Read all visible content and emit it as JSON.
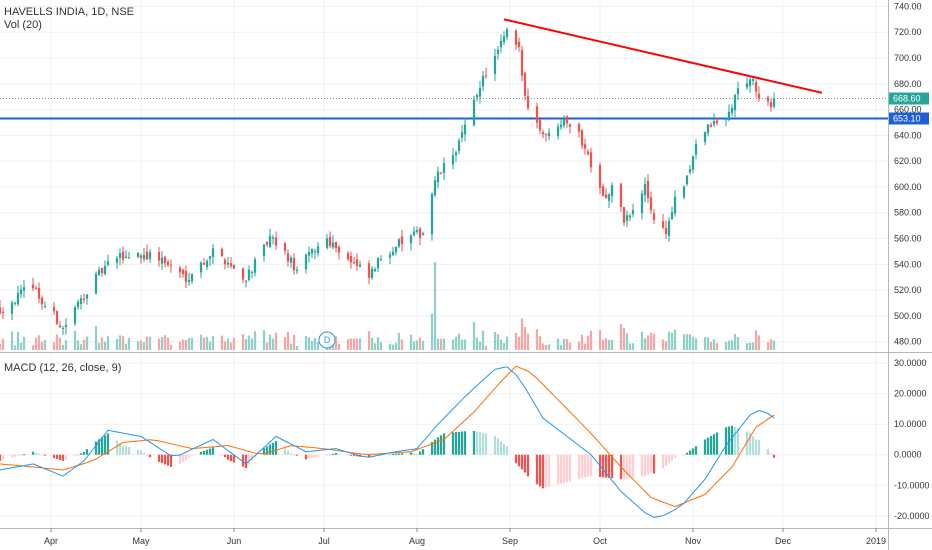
{
  "legend": {
    "symbol": "HAVELLS INDIA, 1D, NSE",
    "volume": "Vol (20)",
    "macd": "MACD (12, 26, close, 9)"
  },
  "colors": {
    "up": "#26a69a",
    "down": "#ef5350",
    "up_vol": "#8fd1c8",
    "down_vol": "#f4a7a5",
    "hist_up_strong": "#26a69a",
    "hist_up_weak": "#b2dfdb",
    "hist_down_strong": "#ef5350",
    "hist_down_weak": "#ffcdd2",
    "macd_line": "#2196f3",
    "signal_line": "#ff6d00",
    "trendline": "#ff0000",
    "support": "#1e5fd6",
    "last_price_tag": "#26a69a",
    "support_tag": "#1e5fd6"
  },
  "events": {
    "dividend_marker": "D",
    "dividend_date": "2018-07-02"
  },
  "chart_data": [
    {
      "type": "candlestick",
      "title": "HAVELLS INDIA, 1D, NSE",
      "x_ticks": [
        "Apr",
        "May",
        "Jun",
        "Jul",
        "Aug",
        "Sep",
        "Oct",
        "Nov",
        "Dec",
        "2019"
      ],
      "y_ticks": [
        480,
        500,
        520,
        540,
        560,
        580,
        600,
        620,
        640,
        660,
        680,
        700,
        720,
        740
      ],
      "ylim": [
        472,
        745
      ],
      "x_range": [
        "2018-03-15",
        "2019-01-05"
      ],
      "last_price": "668.60",
      "support_level": "653.10",
      "support_value": 653.1,
      "trendline": {
        "x": [
          "2018-08-30",
          "2018-12-14"
        ],
        "y": [
          730,
          673
        ]
      },
      "anchors": [
        [
          "2018-03-15",
          505
        ],
        [
          "2018-03-21",
          515
        ],
        [
          "2018-03-26",
          525
        ],
        [
          "2018-03-29",
          510
        ],
        [
          "2018-04-02",
          500
        ],
        [
          "2018-04-05",
          490
        ],
        [
          "2018-04-09",
          505
        ],
        [
          "2018-04-13",
          520
        ],
        [
          "2018-04-18",
          535
        ],
        [
          "2018-04-23",
          545
        ],
        [
          "2018-04-30",
          548
        ],
        [
          "2018-05-07",
          545
        ],
        [
          "2018-05-11",
          538
        ],
        [
          "2018-05-16",
          530
        ],
        [
          "2018-05-21",
          540
        ],
        [
          "2018-05-25",
          550
        ],
        [
          "2018-05-30",
          542
        ],
        [
          "2018-06-04",
          528
        ],
        [
          "2018-06-08",
          540
        ],
        [
          "2018-06-13",
          560
        ],
        [
          "2018-06-18",
          548
        ],
        [
          "2018-06-22",
          535
        ],
        [
          "2018-06-27",
          550
        ],
        [
          "2018-07-02",
          560
        ],
        [
          "2018-07-06",
          552
        ],
        [
          "2018-07-11",
          540
        ],
        [
          "2018-07-16",
          530
        ],
        [
          "2018-07-20",
          545
        ],
        [
          "2018-07-25",
          555
        ],
        [
          "2018-07-31",
          562
        ],
        [
          "2018-08-03",
          565
        ],
        [
          "2018-08-07",
          605
        ],
        [
          "2018-08-13",
          625
        ],
        [
          "2018-08-17",
          645
        ],
        [
          "2018-08-22",
          680
        ],
        [
          "2018-08-27",
          700
        ],
        [
          "2018-08-31",
          720
        ],
        [
          "2018-09-04",
          705
        ],
        [
          "2018-09-06",
          670
        ],
        [
          "2018-09-11",
          645
        ],
        [
          "2018-09-14",
          640
        ],
        [
          "2018-09-19",
          655
        ],
        [
          "2018-09-24",
          640
        ],
        [
          "2018-09-27",
          625
        ],
        [
          "2018-10-03",
          590
        ],
        [
          "2018-10-05",
          600
        ],
        [
          "2018-10-09",
          575
        ],
        [
          "2018-10-12",
          580
        ],
        [
          "2018-10-16",
          600
        ],
        [
          "2018-10-19",
          575
        ],
        [
          "2018-10-23",
          565
        ],
        [
          "2018-10-26",
          590
        ],
        [
          "2018-10-30",
          605
        ],
        [
          "2018-11-02",
          635
        ],
        [
          "2018-11-07",
          648
        ],
        [
          "2018-11-12",
          652
        ],
        [
          "2018-11-16",
          675
        ],
        [
          "2018-11-20",
          685
        ],
        [
          "2018-11-23",
          670
        ],
        [
          "2018-11-27",
          660
        ],
        [
          "2018-11-28",
          665
        ]
      ]
    },
    {
      "type": "bar",
      "title": "Vol (20)",
      "note": "volume bars coloured by candle direction, shown at bottom of price pane"
    },
    {
      "type": "line",
      "title": "MACD (12, 26, close, 9)",
      "y_ticks": [
        "-20.0000",
        "-10.0000",
        "0.0000",
        "10.0000",
        "20.0000",
        "30.0000"
      ],
      "y_tick_values": [
        -20,
        -10,
        0,
        10,
        20,
        30
      ],
      "ylim": [
        -24,
        33
      ],
      "series": [
        {
          "key": "macd",
          "color": "#2196f3"
        },
        {
          "key": "signal",
          "color": "#ff6d00"
        },
        {
          "key": "histogram",
          "type": "bar"
        }
      ],
      "macd_anchors": [
        [
          "2018-03-15",
          -5
        ],
        [
          "2018-03-26",
          -3
        ],
        [
          "2018-04-05",
          -7
        ],
        [
          "2018-04-12",
          -2
        ],
        [
          "2018-04-20",
          8
        ],
        [
          "2018-05-01",
          6
        ],
        [
          "2018-05-12",
          -1
        ],
        [
          "2018-05-25",
          5
        ],
        [
          "2018-06-05",
          -3
        ],
        [
          "2018-06-15",
          6
        ],
        [
          "2018-06-25",
          1
        ],
        [
          "2018-07-05",
          2
        ],
        [
          "2018-07-15",
          -1
        ],
        [
          "2018-07-25",
          1
        ],
        [
          "2018-08-01",
          2
        ],
        [
          "2018-08-08",
          10
        ],
        [
          "2018-08-18",
          20
        ],
        [
          "2018-08-27",
          28
        ],
        [
          "2018-09-01",
          29
        ],
        [
          "2018-09-06",
          22
        ],
        [
          "2018-09-12",
          12
        ],
        [
          "2018-09-20",
          6
        ],
        [
          "2018-09-28",
          0
        ],
        [
          "2018-10-08",
          -12
        ],
        [
          "2018-10-16",
          -19
        ],
        [
          "2018-10-20",
          -21
        ],
        [
          "2018-10-28",
          -17
        ],
        [
          "2018-11-05",
          -8
        ],
        [
          "2018-11-12",
          3
        ],
        [
          "2018-11-20",
          13
        ],
        [
          "2018-11-24",
          15
        ],
        [
          "2018-11-28",
          12
        ]
      ],
      "signal_anchors": [
        [
          "2018-03-15",
          -3
        ],
        [
          "2018-03-26",
          -4
        ],
        [
          "2018-04-05",
          -5
        ],
        [
          "2018-04-15",
          -2
        ],
        [
          "2018-04-25",
          4
        ],
        [
          "2018-05-05",
          5
        ],
        [
          "2018-05-18",
          2
        ],
        [
          "2018-05-30",
          3
        ],
        [
          "2018-06-10",
          0
        ],
        [
          "2018-06-20",
          3
        ],
        [
          "2018-07-01",
          2
        ],
        [
          "2018-07-15",
          0
        ],
        [
          "2018-07-30",
          1
        ],
        [
          "2018-08-10",
          5
        ],
        [
          "2018-08-20",
          14
        ],
        [
          "2018-08-29",
          24
        ],
        [
          "2018-09-03",
          29
        ],
        [
          "2018-09-08",
          27
        ],
        [
          "2018-09-18",
          17
        ],
        [
          "2018-09-28",
          7
        ],
        [
          "2018-10-08",
          -4
        ],
        [
          "2018-10-18",
          -14
        ],
        [
          "2018-10-26",
          -17
        ],
        [
          "2018-11-05",
          -13
        ],
        [
          "2018-11-14",
          -4
        ],
        [
          "2018-11-22",
          9
        ],
        [
          "2018-11-28",
          13
        ]
      ]
    }
  ]
}
